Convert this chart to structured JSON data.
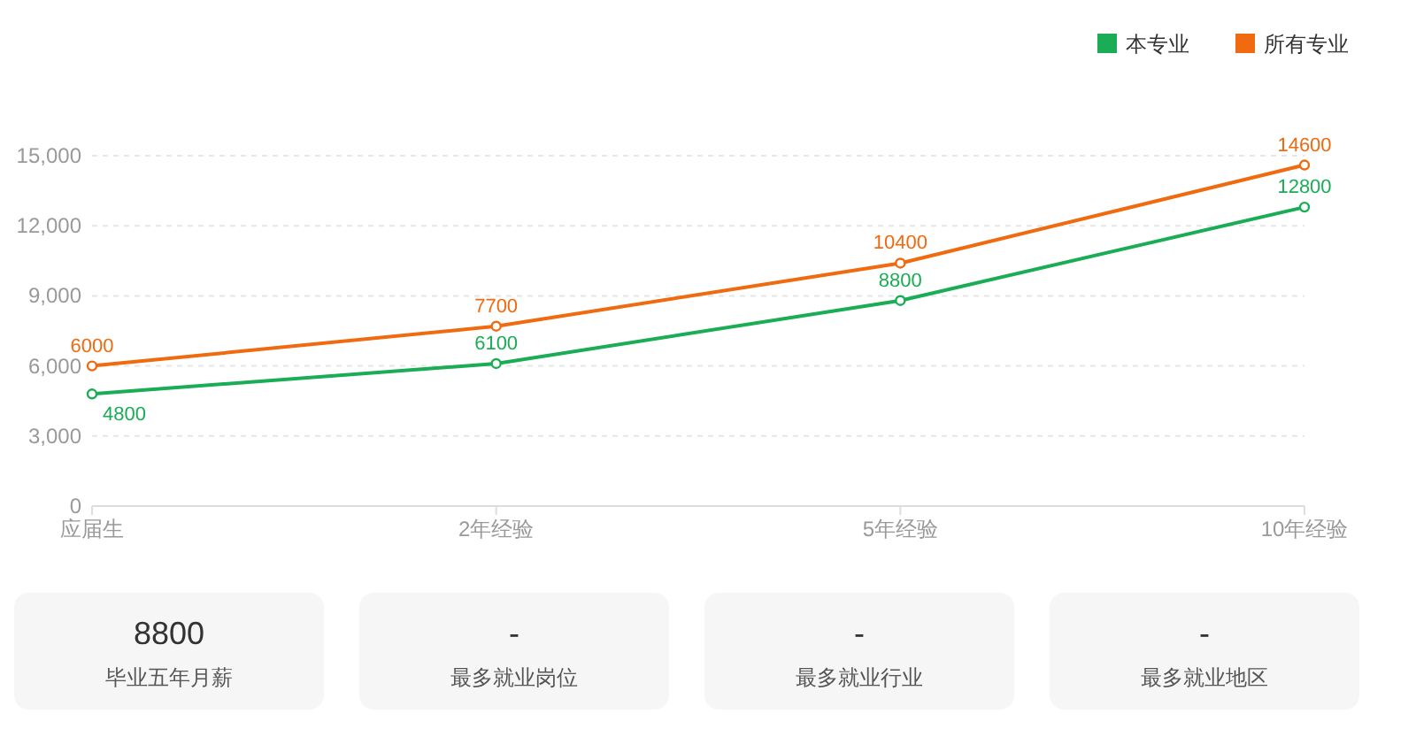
{
  "chart_data": [
    {
      "type": "line",
      "categories": [
        "应届生",
        "2年经验",
        "5年经验",
        "10年经验"
      ],
      "series": [
        {
          "name": "本专业",
          "color": "#1aad55",
          "values": [
            4800,
            6100,
            8800,
            12800
          ]
        },
        {
          "name": "所有专业",
          "color": "#f06a10",
          "values": [
            6000,
            7700,
            10400,
            14600
          ]
        }
      ],
      "ylim": [
        0,
        15000
      ],
      "yticks": [
        0,
        {
          "value": 3000,
          "label": "3,000"
        },
        {
          "value": 6000,
          "label": "6,000"
        },
        {
          "value": 9000,
          "label": "9,000"
        },
        {
          "value": 12000,
          "label": "12,000"
        },
        {
          "value": 15000,
          "label": "15,000"
        }
      ],
      "grid": "y",
      "legend": "top right",
      "marker": "circle",
      "line_style": "solid",
      "data_labels": true
    },
    {
      "type": "other",
      "title": "8800",
      "subtitle": "毕业五年月薪"
    },
    {
      "type": "other",
      "title": "-",
      "subtitle": "最多就业岗位"
    },
    {
      "type": "other",
      "title": "-",
      "subtitle": "最多就业行业"
    },
    {
      "type": "other",
      "title": "-",
      "subtitle": "最多就业地区"
    }
  ]
}
